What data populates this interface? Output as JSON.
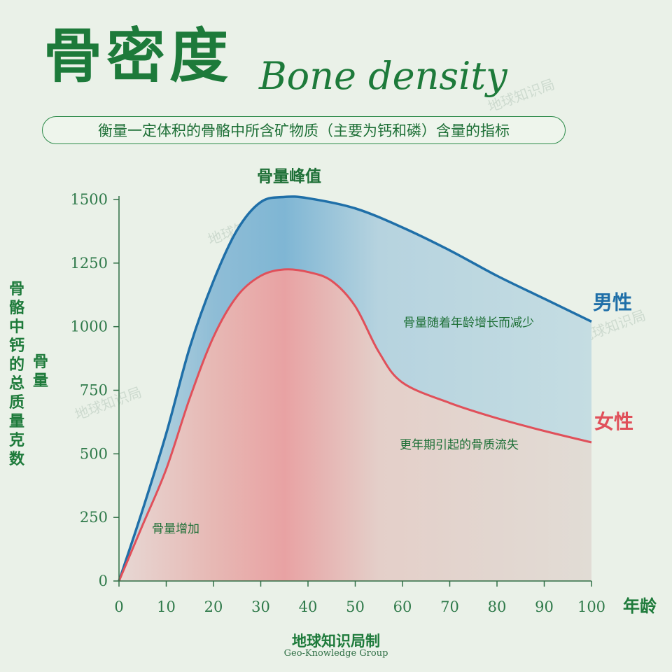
{
  "header": {
    "title_cn": "骨密度",
    "title_en": "Bone density",
    "subtitle": "衡量一定体积的骨骼中所含矿物质（主要为钙和磷）含量的指标"
  },
  "y_axis_label_long": "骨骼中钙的总质量克数",
  "y_axis_label_short": "骨量",
  "credit": {
    "cn": "地球知识局制",
    "en": "Geo-Knowledge Group"
  },
  "watermark": "地球知识局",
  "colors": {
    "male": "#1f6fa8",
    "female": "#e0505a",
    "text_green": "#1d7a3a",
    "background": "#eaf1e8"
  },
  "chart_data": {
    "type": "area",
    "xlabel": "年龄",
    "ylabel": "骨量",
    "xlim": [
      0,
      100
    ],
    "ylim": [
      0,
      1500
    ],
    "x_ticks": [
      0,
      10,
      20,
      30,
      40,
      50,
      60,
      70,
      80,
      90,
      100
    ],
    "y_ticks": [
      0,
      250,
      500,
      750,
      1000,
      1250,
      1500
    ],
    "grid": false,
    "series": [
      {
        "name": "男性",
        "color": "#1f6fa8",
        "points": [
          [
            0,
            0
          ],
          [
            5,
            280
          ],
          [
            10,
            580
          ],
          [
            15,
            920
          ],
          [
            20,
            1180
          ],
          [
            25,
            1380
          ],
          [
            30,
            1490
          ],
          [
            35,
            1510
          ],
          [
            40,
            1505
          ],
          [
            50,
            1465
          ],
          [
            60,
            1390
          ],
          [
            70,
            1300
          ],
          [
            80,
            1200
          ],
          [
            90,
            1110
          ],
          [
            100,
            1020
          ]
        ]
      },
      {
        "name": "女性",
        "color": "#e0505a",
        "points": [
          [
            0,
            0
          ],
          [
            5,
            220
          ],
          [
            10,
            440
          ],
          [
            15,
            720
          ],
          [
            20,
            960
          ],
          [
            25,
            1120
          ],
          [
            30,
            1200
          ],
          [
            35,
            1225
          ],
          [
            40,
            1215
          ],
          [
            45,
            1180
          ],
          [
            50,
            1080
          ],
          [
            55,
            900
          ],
          [
            60,
            780
          ],
          [
            70,
            700
          ],
          [
            80,
            640
          ],
          [
            90,
            590
          ],
          [
            100,
            545
          ]
        ]
      }
    ],
    "annotations": [
      {
        "text": "骨量峰值",
        "x": 36,
        "y": 1570
      },
      {
        "text": "骨量随着年龄增长而减少",
        "x": 74,
        "y": 1000
      },
      {
        "text": "更年期引起的骨质流失",
        "x": 72,
        "y": 520
      },
      {
        "text": "骨量增加",
        "x": 12,
        "y": 190
      }
    ]
  }
}
